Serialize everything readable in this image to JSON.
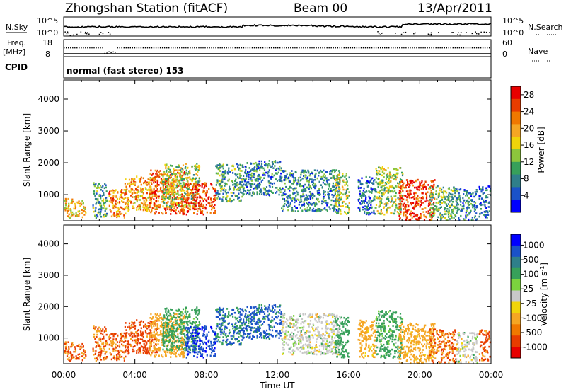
{
  "header": {
    "station": "Zhongshan Station (fitACF)",
    "beam": "Beam 00",
    "date": "13/Apr/2011"
  },
  "status_panels": {
    "nsky_label": "N.Sky",
    "nsky_top": "10^5",
    "nsky_bottom": "10^0",
    "nsearch_label": "N.Search",
    "nsearch_top": "10^5",
    "nsearch_bottom": "10^0",
    "freq_label_1": "Freq.",
    "freq_label_2": "[MHz]",
    "freq_top": "18",
    "freq_bottom": "8",
    "nave_label": "Nave",
    "nave_top": "60",
    "nave_bottom": "0",
    "cpid_label": "CPID",
    "cpid_text": "normal (fast stereo) 153"
  },
  "colors": {
    "power": [
      "#0000ff",
      "#1a52c8",
      "#2f7f8a",
      "#37a05a",
      "#8cc63c",
      "#f0d40a",
      "#f5a623",
      "#f07800",
      "#e83c00",
      "#e80000"
    ],
    "velocity": [
      "#0000ff",
      "#1a52c8",
      "#2f7f8a",
      "#37a05a",
      "#7bd33e",
      "#c8c8c8",
      "#f0d40a",
      "#f5a623",
      "#f07800",
      "#e83c00",
      "#e80000"
    ],
    "ground_scatter": "#c8c8c8"
  },
  "chart_data": [
    {
      "type": "heatmap",
      "name": "power",
      "title": "",
      "xlabel": "Time UT",
      "ylabel": "Slant Range [km]",
      "x_ticks": [
        "00:00",
        "04:00",
        "08:00",
        "12:00",
        "16:00",
        "20:00",
        "00:00"
      ],
      "x_range_hours": [
        0,
        24
      ],
      "y_ticks": [
        "1000",
        "2000",
        "3000",
        "4000"
      ],
      "y_range": [
        180,
        4600
      ],
      "colorbar_label": "Power [dB]",
      "colorbar_ticks": [
        "4",
        "8",
        "12",
        "16",
        "20",
        "24",
        "28"
      ],
      "colorbar_range": [
        0,
        30
      ],
      "regions": [
        {
          "t": [
            0.0,
            1.2
          ],
          "r": [
            300,
            900
          ],
          "v": 18
        },
        {
          "t": [
            1.6,
            2.4
          ],
          "r": [
            300,
            1400
          ],
          "v": 10
        },
        {
          "t": [
            2.5,
            3.5
          ],
          "r": [
            300,
            1200
          ],
          "v": 22
        },
        {
          "t": [
            3.4,
            5.2
          ],
          "r": [
            500,
            1600
          ],
          "v": 20
        },
        {
          "t": [
            4.8,
            6.8
          ],
          "r": [
            400,
            1800
          ],
          "v": 24
        },
        {
          "t": [
            5.5,
            7.6
          ],
          "r": [
            600,
            2000
          ],
          "v": 14
        },
        {
          "t": [
            6.8,
            8.5
          ],
          "r": [
            400,
            1400
          ],
          "v": 26
        },
        {
          "t": [
            8.5,
            10.0
          ],
          "r": [
            800,
            2000
          ],
          "v": 10
        },
        {
          "t": [
            10.0,
            12.2
          ],
          "r": [
            1000,
            2100
          ],
          "v": 8
        },
        {
          "t": [
            12.2,
            15.5
          ],
          "r": [
            500,
            1800
          ],
          "v": 8
        },
        {
          "t": [
            15.2,
            16.0
          ],
          "r": [
            400,
            1700
          ],
          "v": 14
        },
        {
          "t": [
            16.5,
            17.5
          ],
          "r": [
            400,
            1600
          ],
          "v": 6
        },
        {
          "t": [
            17.5,
            19.0
          ],
          "r": [
            400,
            1900
          ],
          "v": 14
        },
        {
          "t": [
            18.8,
            20.8
          ],
          "r": [
            200,
            1500
          ],
          "v": 26
        },
        {
          "t": [
            20.5,
            22.0
          ],
          "r": [
            200,
            1300
          ],
          "v": 12
        },
        {
          "t": [
            22.0,
            23.2
          ],
          "r": [
            200,
            1200
          ],
          "v": 8
        },
        {
          "t": [
            23.3,
            24.0
          ],
          "r": [
            300,
            1300
          ],
          "v": 6
        }
      ]
    },
    {
      "type": "heatmap",
      "name": "velocity",
      "title": "",
      "xlabel": "Time UT",
      "ylabel": "Slant Range [km]",
      "x_ticks": [
        "00:00",
        "04:00",
        "08:00",
        "12:00",
        "16:00",
        "20:00",
        "00:00"
      ],
      "x_range_hours": [
        0,
        24
      ],
      "y_ticks": [
        "1000",
        "2000",
        "3000",
        "4000"
      ],
      "y_range": [
        180,
        4600
      ],
      "colorbar_label": "Velocity [m s^-1]",
      "colorbar_ticks": [
        "1000",
        "500",
        "100",
        "25",
        "-25",
        "-100",
        "-500",
        "-1000"
      ],
      "colorbar_range": [
        1000,
        -1000
      ],
      "regions": [
        {
          "t": [
            0.0,
            1.2
          ],
          "r": [
            300,
            900
          ],
          "v": -400
        },
        {
          "t": [
            1.6,
            2.4
          ],
          "r": [
            300,
            1400
          ],
          "v": -300
        },
        {
          "t": [
            2.5,
            3.5
          ],
          "r": [
            300,
            1200
          ],
          "v": -300
        },
        {
          "t": [
            3.4,
            5.2
          ],
          "r": [
            500,
            1600
          ],
          "v": -500
        },
        {
          "t": [
            4.8,
            6.8
          ],
          "r": [
            400,
            1800
          ],
          "v": -200
        },
        {
          "t": [
            5.5,
            7.6
          ],
          "r": [
            600,
            2000
          ],
          "v": 150
        },
        {
          "t": [
            6.8,
            8.5
          ],
          "r": [
            400,
            1400
          ],
          "v": 600
        },
        {
          "t": [
            8.5,
            10.0
          ],
          "r": [
            800,
            2000
          ],
          "v": 300
        },
        {
          "t": [
            10.0,
            12.2
          ],
          "r": [
            1000,
            2100
          ],
          "v": 400
        },
        {
          "t": [
            12.2,
            15.5
          ],
          "r": [
            500,
            1800
          ],
          "v": 0
        },
        {
          "t": [
            15.2,
            16.0
          ],
          "r": [
            400,
            1700
          ],
          "v": 200
        },
        {
          "t": [
            16.5,
            17.5
          ],
          "r": [
            400,
            1600
          ],
          "v": -150
        },
        {
          "t": [
            17.5,
            19.0
          ],
          "r": [
            400,
            1900
          ],
          "v": 120
        },
        {
          "t": [
            18.8,
            20.8
          ],
          "r": [
            200,
            1500
          ],
          "v": -150
        },
        {
          "t": [
            20.5,
            22.0
          ],
          "r": [
            200,
            1300
          ],
          "v": -300
        },
        {
          "t": [
            22.0,
            23.2
          ],
          "r": [
            200,
            1200
          ],
          "v": 0
        },
        {
          "t": [
            23.3,
            24.0
          ],
          "r": [
            300,
            1300
          ],
          "v": -400
        }
      ]
    }
  ]
}
